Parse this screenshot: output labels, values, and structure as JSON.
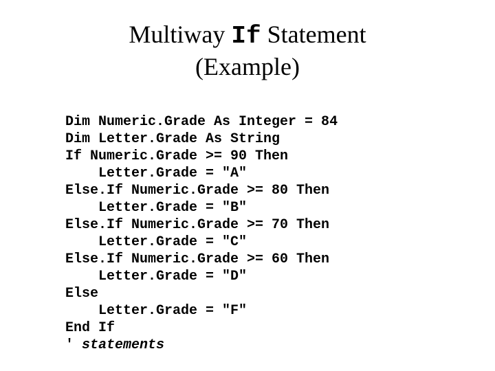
{
  "title": {
    "prefix": "Multiway ",
    "keyword": "If",
    "suffix": " Statement",
    "line2": "(Example)"
  },
  "code": {
    "l1": "Dim Numeric.Grade As Integer = 84",
    "l2": "Dim Letter.Grade As String",
    "l3": "If Numeric.Grade >= 90 Then",
    "l4": "Letter.Grade = \"A\"",
    "l5": "Else.If Numeric.Grade >= 80 Then",
    "l6": "Letter.Grade = \"B\"",
    "l7": "Else.If Numeric.Grade >= 70 Then",
    "l8": "Letter.Grade = \"C\"",
    "l9": "Else.If Numeric.Grade >= 60 Then",
    "l10": "Letter.Grade = \"D\"",
    "l11": "Else",
    "l12": "Letter.Grade = \"F\"",
    "l13": "End If",
    "l14_prefix": "' ",
    "l14_comment": "statements"
  }
}
